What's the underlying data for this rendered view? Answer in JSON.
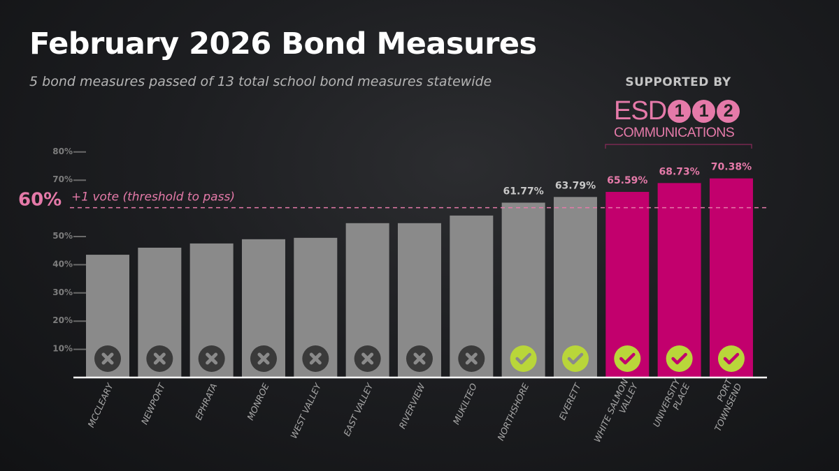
{
  "header": {
    "title": "February 2026 Bond Measures",
    "subtitle": "5 bond measures passed of 13 total school bond measures statewide"
  },
  "sponsor": {
    "label": "SUPPORTED BY",
    "logo_text": "ESD",
    "logo_digits": [
      "1",
      "1",
      "2"
    ],
    "logo_subtext": "COMMUNICATIONS"
  },
  "colors": {
    "failed": "#8a8a8a",
    "passed_other": "#8a8a8a",
    "esd112": "#c2006d",
    "accent_pink": "#e57aa9",
    "check": "#b9d63a",
    "x_icon_bg": "#3a3a3a"
  },
  "chart_data": {
    "type": "bar",
    "categories": [
      "MCCLEARY",
      "NEWPORT",
      "EPHRATA",
      "MONROE",
      "WEST VALLEY",
      "EAST VALLEY",
      "RIVERVIEW",
      "MUKILTEO",
      "NORTHSHORE",
      "EVERETT",
      "WHITE SALMON VALLEY",
      "UNIVERSITY PLACE",
      "PORT TOWNSEND"
    ],
    "category_lines": [
      [
        "MCCLEARY"
      ],
      [
        "NEWPORT"
      ],
      [
        "EPHRATA"
      ],
      [
        "MONROE"
      ],
      [
        "WEST VALLEY"
      ],
      [
        "EAST VALLEY"
      ],
      [
        "RIVERVIEW"
      ],
      [
        "MUKILTEO"
      ],
      [
        "NORTHSHORE"
      ],
      [
        "EVERETT"
      ],
      [
        "WHITE SALMON",
        "VALLEY"
      ],
      [
        "UNIVERSITY",
        "PLACE"
      ],
      [
        "PORT",
        "TOWNSEND"
      ]
    ],
    "values": [
      43.3,
      45.8,
      47.3,
      48.8,
      49.3,
      54.5,
      54.5,
      57.2,
      61.77,
      63.79,
      65.59,
      68.73,
      70.38
    ],
    "data_labels": [
      "",
      "",
      "",
      "",
      "",
      "",
      "",
      "",
      "61.77%",
      "63.79%",
      "65.59%",
      "68.73%",
      "70.38%"
    ],
    "status": [
      "failed",
      "failed",
      "failed",
      "failed",
      "failed",
      "failed",
      "failed",
      "failed",
      "passed",
      "passed",
      "passed",
      "passed",
      "passed"
    ],
    "esd112_region": [
      false,
      false,
      false,
      false,
      false,
      false,
      false,
      false,
      false,
      false,
      true,
      true,
      true
    ],
    "ylim": [
      0,
      80
    ],
    "yticks": [
      10,
      20,
      30,
      40,
      50,
      60,
      70,
      80
    ],
    "ytick_labels": [
      "10%",
      "20%",
      "30%",
      "40%",
      "50%",
      "",
      "70%",
      "80%"
    ],
    "threshold": {
      "value": 60,
      "label": "60%",
      "note": "+1 vote (threshold to pass)"
    },
    "xlabel": "",
    "ylabel": "",
    "grid": false
  }
}
